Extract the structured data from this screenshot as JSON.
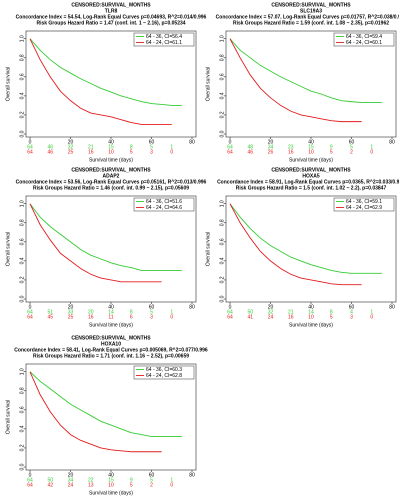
{
  "chart_data": [
    {
      "type": "line",
      "title": "CENSORED:SURVIVAL_MONTHS",
      "subtitle": "TLR8",
      "annotations": [
        "Concordance Index = 54.54, Log-Rank Equal Curves p=0.04693, R^2=0.014/0.996",
        "Risk Groups Hazard Ratio = 1.47 (conf. int. 1 ~ 2.16), p=0.05234"
      ],
      "x_label": "Survival time (days)",
      "y_label": "Overall survival",
      "x": [
        0,
        5,
        10,
        15,
        20,
        25,
        30,
        35,
        40,
        45,
        50,
        55,
        60,
        65,
        70,
        75
      ],
      "series": [
        {
          "name": "64 - 36, CI=56.4",
          "color": "#33cc33",
          "values": [
            1,
            0.88,
            0.78,
            0.7,
            0.64,
            0.58,
            0.53,
            0.48,
            0.44,
            0.4,
            0.37,
            0.34,
            0.32,
            0.31,
            0.3,
            0.3
          ],
          "at_risk": [
            64,
            46,
            32,
            21,
            15,
            8,
            5,
            1
          ]
        },
        {
          "name": "64 - 24, CI=61.1",
          "color": "#e31a1c",
          "values": [
            1,
            0.78,
            0.6,
            0.45,
            0.35,
            0.27,
            0.22,
            0.2,
            0.18,
            0.15,
            0.12,
            0.1,
            0.1,
            0.1,
            0.1,
            null
          ],
          "at_risk": [
            64,
            46,
            25,
            16,
            10,
            5,
            3,
            0
          ]
        }
      ],
      "risk_x": [
        0,
        10,
        20,
        30,
        40,
        50,
        60,
        70
      ],
      "xlim": [
        0,
        80
      ],
      "xticks": [
        0,
        20,
        40,
        60,
        80
      ],
      "ylim": [
        0,
        1.05
      ],
      "yticks": [
        {
          "value": 0,
          "label": "0.0"
        },
        0.2,
        0.4,
        0.6,
        0.8,
        {
          "value": 1,
          "label": "1.0"
        }
      ],
      "legend": "upper right"
    },
    {
      "type": "line",
      "title": "CENSORED:SURVIVAL_MONTHS",
      "subtitle": "SLC19A3",
      "annotations": [
        "Concordance Index = 57.07, Log-Rank Equal Curves p=0.01757, R^2=0.038/0.996",
        "Risk Groups Hazard Ratio = 1.59 (conf. int. 1.08 ~ 2.35), p=0.01962"
      ],
      "x_label": "Survival time (days)",
      "y_label": "Overall survival",
      "x": [
        0,
        5,
        10,
        15,
        20,
        25,
        30,
        35,
        40,
        45,
        50,
        55,
        60,
        65,
        70,
        75
      ],
      "series": [
        {
          "name": "64 - 36, CI=59.4",
          "color": "#33cc33",
          "values": [
            1,
            0.88,
            0.8,
            0.72,
            0.66,
            0.6,
            0.55,
            0.5,
            0.45,
            0.42,
            0.38,
            0.35,
            0.34,
            0.33,
            0.33,
            0.33
          ],
          "at_risk": [
            64,
            48,
            34,
            23,
            15,
            9,
            5,
            1
          ]
        },
        {
          "name": "64 - 24, CI=60.1",
          "color": "#e31a1c",
          "values": [
            1,
            0.8,
            0.62,
            0.48,
            0.38,
            0.3,
            0.24,
            0.2,
            0.18,
            0.16,
            0.14,
            0.13,
            0.13,
            0.13,
            null,
            null
          ],
          "at_risk": [
            64,
            46,
            26,
            16,
            10,
            5,
            2,
            0
          ]
        }
      ],
      "risk_x": [
        0,
        10,
        20,
        30,
        40,
        50,
        60,
        70
      ],
      "xlim": [
        0,
        80
      ],
      "xticks": [
        0,
        20,
        40,
        60,
        80
      ],
      "ylim": [
        0,
        1.05
      ],
      "yticks": [
        {
          "value": 0,
          "label": "0.0"
        },
        0.2,
        0.4,
        0.6,
        0.8,
        {
          "value": 1,
          "label": "1.0"
        }
      ],
      "legend": "upper right"
    },
    {
      "type": "line",
      "title": "CENSORED:SURVIVAL_MONTHS",
      "subtitle": "ADAP2",
      "annotations": [
        "Concordance Index = 53.56, Log-Rank Equal Curves p=0.05161, R^2=0.013/0.996",
        "Risk Groups Hazard Ratio = 1.46 (conf. int. 0.99 ~ 2.15), p=0.05609"
      ],
      "x_label": "Survival time (days)",
      "y_label": "Overall survival",
      "x": [
        0,
        5,
        10,
        15,
        20,
        25,
        30,
        35,
        40,
        45,
        50,
        55,
        60,
        65,
        70,
        75
      ],
      "series": [
        {
          "name": "64 - 36, CI=51.6",
          "color": "#33cc33",
          "values": [
            1,
            0.86,
            0.76,
            0.68,
            0.6,
            0.52,
            0.46,
            0.42,
            0.38,
            0.35,
            0.33,
            0.3,
            0.3,
            0.3,
            0.3,
            0.3
          ],
          "at_risk": [
            64,
            51,
            33,
            20,
            14,
            8,
            5,
            1
          ]
        },
        {
          "name": "64 - 24, CI=64.6",
          "color": "#e31a1c",
          "values": [
            1,
            0.78,
            0.62,
            0.48,
            0.4,
            0.32,
            0.26,
            0.22,
            0.2,
            0.18,
            0.18,
            0.18,
            0.18,
            0.18,
            null,
            null
          ],
          "at_risk": [
            64,
            45,
            25,
            16,
            11,
            6,
            3,
            0
          ]
        }
      ],
      "risk_x": [
        0,
        10,
        20,
        30,
        40,
        50,
        60,
        70
      ],
      "xlim": [
        0,
        80
      ],
      "xticks": [
        0,
        20,
        40,
        60,
        80
      ],
      "ylim": [
        0,
        1.05
      ],
      "yticks": [
        {
          "value": 0,
          "label": "0.0"
        },
        0.2,
        0.4,
        0.6,
        0.8,
        {
          "value": 1,
          "label": "1.0"
        }
      ],
      "legend": "upper right"
    },
    {
      "type": "line",
      "title": "CENSORED:SURVIVAL_MONTHS",
      "subtitle": "HOXA5",
      "annotations": [
        "Concordance Index = 58.91, Log-Rank Equal Curves p=0.0365, R^2=0.033/0.996",
        "Risk Groups Hazard Ratio = 1.5 (conf. int. 1.02 ~ 2.2), p=0.03847"
      ],
      "x_label": "Survival time (days)",
      "y_label": "Overall survival",
      "x": [
        0,
        5,
        10,
        15,
        20,
        25,
        30,
        35,
        40,
        45,
        50,
        55,
        60,
        65,
        70,
        75
      ],
      "series": [
        {
          "name": "64 - 36, CI=59.1",
          "color": "#33cc33",
          "values": [
            1,
            0.86,
            0.74,
            0.64,
            0.56,
            0.5,
            0.44,
            0.4,
            0.36,
            0.33,
            0.3,
            0.28,
            0.27,
            0.27,
            0.27,
            0.27
          ],
          "at_risk": [
            64,
            50,
            32,
            21,
            14,
            8,
            4,
            1
          ]
        },
        {
          "name": "64 - 24, CI=62.9",
          "color": "#e31a1c",
          "values": [
            1,
            0.8,
            0.64,
            0.5,
            0.4,
            0.32,
            0.26,
            0.22,
            0.2,
            0.18,
            0.16,
            0.15,
            0.15,
            0.15,
            null,
            null
          ],
          "at_risk": [
            64,
            41,
            24,
            16,
            10,
            5,
            3,
            0
          ]
        }
      ],
      "risk_x": [
        0,
        10,
        20,
        30,
        40,
        50,
        60,
        70
      ],
      "xlim": [
        0,
        80
      ],
      "xticks": [
        0,
        20,
        40,
        60,
        80
      ],
      "ylim": [
        0,
        1.05
      ],
      "yticks": [
        {
          "value": 0,
          "label": "0.0"
        },
        0.2,
        0.4,
        0.6,
        0.8,
        {
          "value": 1,
          "label": "1.0"
        }
      ],
      "legend": "upper right"
    },
    {
      "type": "line",
      "title": "CENSORED:SURVIVAL_MONTHS",
      "subtitle": "HOXA10",
      "annotations": [
        "Concordance Index = 58.41, Log-Rank Equal Curves p=0.005069, R^2=0.077/0.996",
        "Risk Groups Hazard Ratio = 1.71 (conf. int. 1.16 ~ 2.52), p=0.00659"
      ],
      "x_label": "Survival time (days)",
      "y_label": "Overall survival",
      "x": [
        0,
        5,
        10,
        15,
        20,
        25,
        30,
        35,
        40,
        45,
        50,
        55,
        60,
        65,
        70,
        75
      ],
      "series": [
        {
          "name": "64 - 36, CI=60.3",
          "color": "#33cc33",
          "values": [
            1,
            0.9,
            0.82,
            0.74,
            0.66,
            0.6,
            0.54,
            0.48,
            0.44,
            0.4,
            0.36,
            0.34,
            0.32,
            0.32,
            0.32,
            0.32
          ],
          "at_risk": [
            64,
            50,
            34,
            22,
            15,
            9,
            5,
            1
          ]
        },
        {
          "name": "64 - 24, CI=62.8",
          "color": "#e31a1c",
          "values": [
            1,
            0.76,
            0.58,
            0.44,
            0.34,
            0.28,
            0.24,
            0.2,
            0.18,
            0.17,
            0.16,
            0.16,
            0.16,
            0.16,
            null,
            null
          ],
          "at_risk": [
            64,
            42,
            24,
            13,
            10,
            5,
            2,
            0
          ]
        }
      ],
      "risk_x": [
        0,
        10,
        20,
        30,
        40,
        50,
        60,
        70
      ],
      "xlim": [
        0,
        80
      ],
      "xticks": [
        0,
        20,
        40,
        60,
        80
      ],
      "ylim": [
        0,
        1.05
      ],
      "yticks": [
        {
          "value": 0,
          "label": "0.0"
        },
        0.2,
        0.4,
        0.6,
        0.8,
        {
          "value": 1,
          "label": "1.0"
        }
      ],
      "legend": "upper right"
    }
  ]
}
